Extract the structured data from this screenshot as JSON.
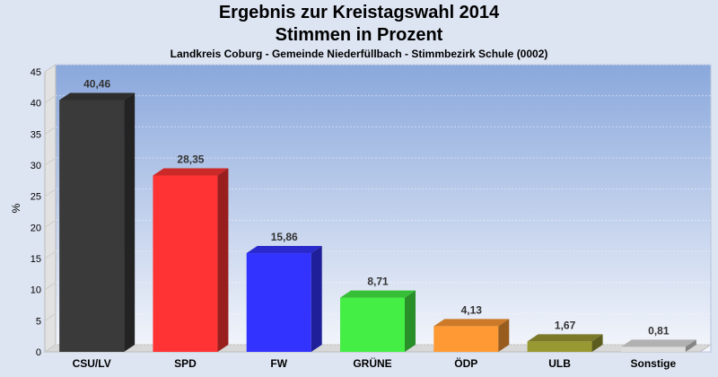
{
  "chart_data": {
    "type": "bar",
    "title": "Ergebnis zur Kreistagswahl 2014",
    "subtitle_line": "Stimmen in Prozent",
    "description": "Landkreis Coburg - Gemeinde Niederfüllbach - Stimmbezirk Schule (0002)",
    "ylabel": "%",
    "xlabel": "",
    "ylim": [
      0,
      45
    ],
    "yticks": [
      0,
      5,
      10,
      15,
      20,
      25,
      30,
      35,
      40,
      45
    ],
    "categories": [
      "CSU/LV",
      "SPD",
      "FW",
      "GRÜNE",
      "ÖDP",
      "ULB",
      "Sonstige"
    ],
    "values": [
      40.46,
      28.35,
      15.86,
      8.71,
      4.13,
      1.67,
      0.81
    ],
    "value_labels": [
      "40,46",
      "28,35",
      "15,86",
      "8,71",
      "4,13",
      "1,67",
      "0,81"
    ],
    "colors": [
      "#3a3a3a",
      "#ff3333",
      "#3333ff",
      "#44ee44",
      "#ff9933",
      "#999933",
      "#dddddd"
    ],
    "legend": "none",
    "grid": true
  }
}
